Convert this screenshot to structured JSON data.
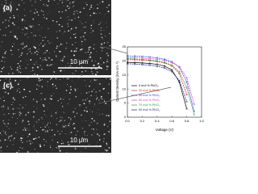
{
  "panels": [
    {
      "label": "(a)",
      "scale_bar": "10 μm"
    },
    {
      "label": "(c)",
      "scale_bar": "10 μm"
    }
  ],
  "chart_data": {
    "type": "line",
    "x_label": "Voltage (V)",
    "y_label": "Current Density (mA cm⁻²)",
    "x": [
      0,
      0.1,
      0.2,
      0.3,
      0.4,
      0.5,
      0.6,
      0.7,
      0.8,
      0.9,
      1.0
    ],
    "series": [
      {
        "name": "0 mol % PbCl₂",
        "color": "#000000",
        "values": [
          19.5,
          19.4,
          19.3,
          19.1,
          18.8,
          18.2,
          16.8,
          12.5,
          3.0,
          null,
          null
        ]
      },
      {
        "name": "10 mol % PbCl₂",
        "color": "#e0201b",
        "values": [
          20.5,
          20.4,
          20.3,
          20.1,
          19.8,
          19.3,
          18.2,
          15.5,
          8.0,
          null,
          null
        ]
      },
      {
        "name": "30 mol % PbCl₂",
        "color": "#2a3fd6",
        "values": [
          21.8,
          21.7,
          21.6,
          21.4,
          21.1,
          20.6,
          19.7,
          17.8,
          12.5,
          2.0,
          null
        ]
      },
      {
        "name": "50 mol % PbCl₂",
        "color": "#d63bc9",
        "values": [
          21.2,
          21.1,
          21.0,
          20.8,
          20.6,
          20.2,
          19.4,
          17.9,
          14.0,
          4.5,
          null
        ]
      },
      {
        "name": "70 mol % PbCl₂",
        "color": "#2b9b3a",
        "values": [
          20.8,
          20.7,
          20.5,
          20.3,
          20.0,
          19.5,
          18.5,
          16.2,
          10.5,
          1.0,
          null
        ]
      },
      {
        "name": "90 mol % PbCl₂",
        "color": "#1a1f7a",
        "values": [
          19.0,
          18.9,
          18.7,
          18.5,
          18.1,
          17.5,
          16.2,
          13.0,
          5.5,
          null,
          null
        ]
      }
    ],
    "xlim": [
      0,
      1.0
    ],
    "xticks": [
      {
        "value": 0,
        "label": "0.0"
      },
      {
        "value": 0.2,
        "label": "0.2"
      },
      {
        "value": 0.4,
        "label": "0.4"
      },
      {
        "value": 0.6,
        "label": "0.6"
      },
      {
        "value": 0.8,
        "label": "0.8"
      },
      {
        "value": 1.0,
        "label": "1.0"
      }
    ],
    "ylim": [
      0,
      25
    ],
    "yticks": [
      0,
      5,
      10,
      15,
      20,
      25
    ]
  }
}
